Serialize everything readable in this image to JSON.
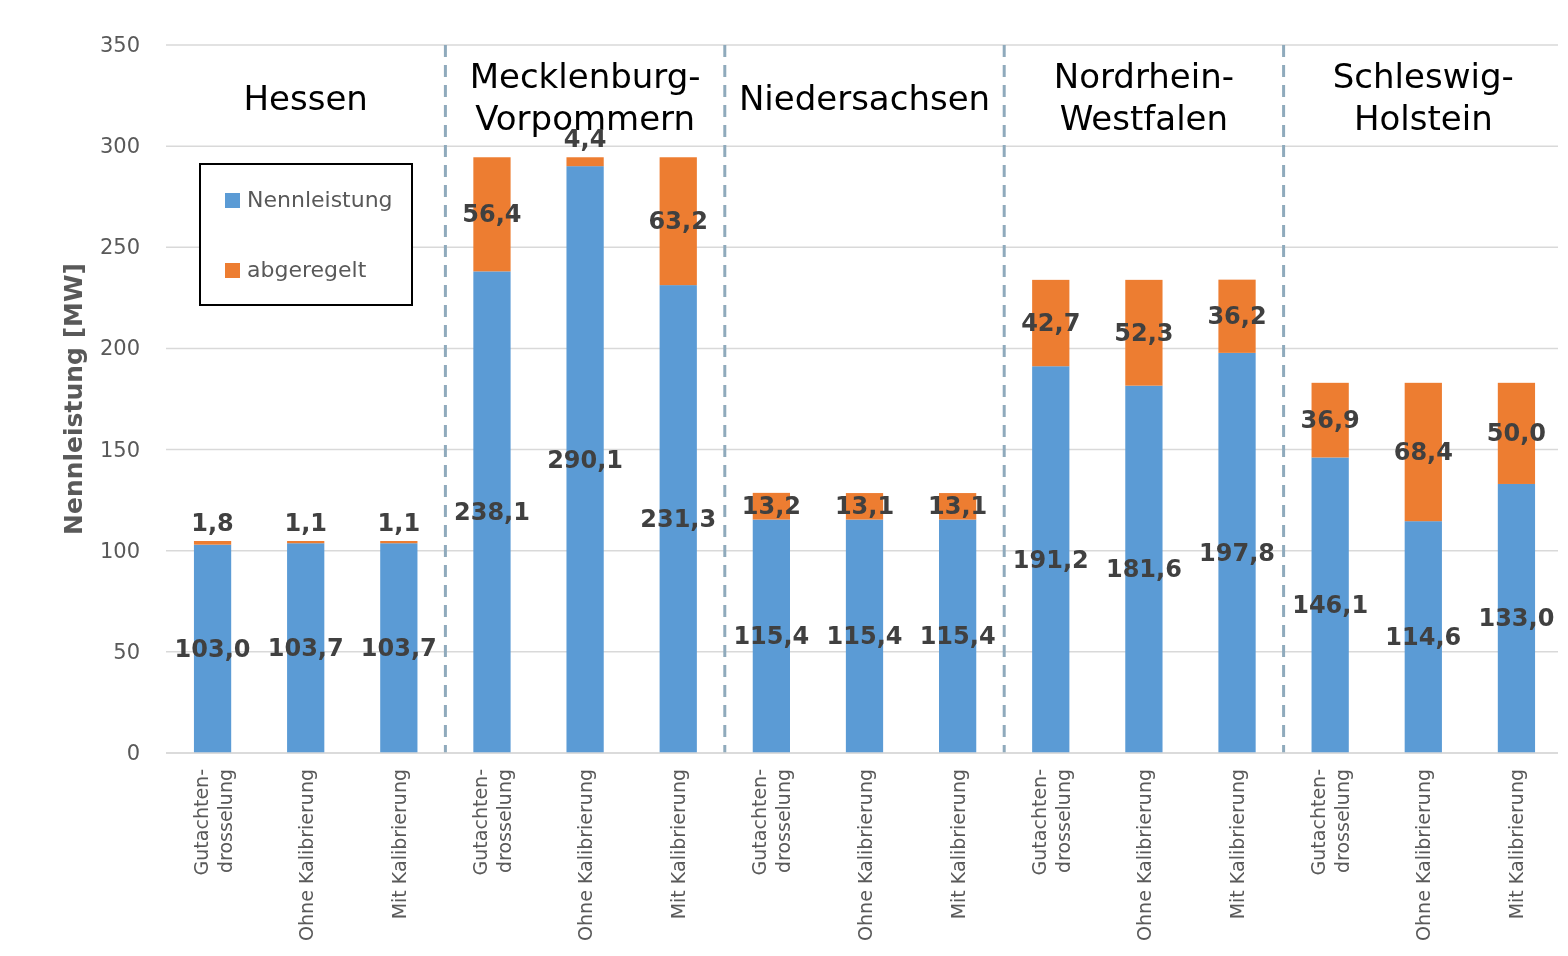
{
  "chart_data": {
    "type": "bar",
    "stacked": true,
    "ylabel": "Nennleistung [MW]",
    "categories": [
      "Gutachten-\ndrosselung",
      "Ohne Kalibrierung",
      "Mit Kalibrierung",
      "Gutachten-\ndrosselung",
      "Ohne Kalibrierung",
      "Mit Kalibrierung",
      "Gutachten-\ndrosselung",
      "Ohne Kalibrierung",
      "Mit Kalibrierung",
      "Gutachten-\ndrosselung",
      "Ohne Kalibrierung",
      "Mit Kalibrierung",
      "Gutachten-\ndrosselung",
      "Ohne Kalibrierung",
      "Mit Kalibrierung"
    ],
    "series": [
      {
        "name": "Nennleistung",
        "color": "#5b9bd5",
        "values": [
          103.0,
          103.7,
          103.7,
          238.1,
          290.1,
          231.3,
          115.4,
          115.4,
          115.4,
          191.2,
          181.6,
          197.8,
          146.1,
          114.6,
          133.0
        ],
        "value_labels": [
          "103,0",
          "103,7",
          "103,7",
          "238,1",
          "290,1",
          "231,3",
          "115,4",
          "115,4",
          "115,4",
          "191,2",
          "181,6",
          "197,8",
          "146,1",
          "114,6",
          "133,0"
        ]
      },
      {
        "name": "abgeregelt",
        "color": "#ed7d31",
        "values": [
          1.8,
          1.1,
          1.1,
          56.4,
          4.4,
          63.2,
          13.2,
          13.1,
          13.1,
          42.7,
          52.3,
          36.2,
          36.9,
          68.4,
          50.0
        ],
        "value_labels": [
          "1,8",
          "1,1",
          "1,1",
          "56,4",
          "4,4",
          "63,2",
          "13,2",
          "13,1",
          "13,1",
          "42,7",
          "52,3",
          "36,2",
          "36,9",
          "68,4",
          "50,0"
        ]
      }
    ],
    "annotations": [
      "Hessen",
      "Mecklenburg-\nVorpommern",
      "Niedersachsen",
      "Nordrhein-\nWestfalen",
      "Schleswig-\nHolstein"
    ],
    "ylim": [
      0,
      350
    ],
    "yticks": [
      0,
      50,
      100,
      150,
      200,
      250,
      300,
      350
    ],
    "grid": "y",
    "legend": "top left"
  }
}
